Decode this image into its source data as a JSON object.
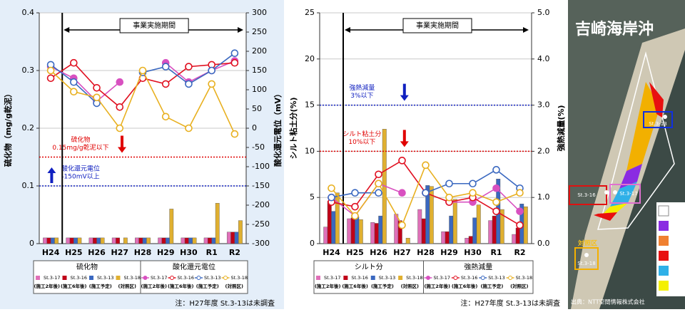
{
  "chart_data": [
    {
      "type": "combo",
      "y_title": "硫化物（mg/g乾泥）",
      "y2_title": "酸化還元電位（mV）",
      "categories": [
        "H24",
        "H25",
        "H26",
        "H27",
        "H28",
        "H29",
        "H30",
        "R1",
        "R2"
      ],
      "ylim": [
        0,
        0.4
      ],
      "yticks": [
        0,
        0.1,
        0.2,
        0.3,
        0.4
      ],
      "y2lim": [
        -300,
        300
      ],
      "y2ticks": [
        300,
        250,
        200,
        150,
        100,
        50,
        0,
        -50,
        -100,
        -150,
        -200,
        -250,
        -300
      ],
      "grid": true,
      "series": [
        {
          "name": "St.3-17",
          "color": "#e070b8",
          "kind": "bar",
          "values": [
            0.01,
            0.01,
            0.01,
            0.01,
            0.01,
            0.01,
            0.01,
            0.01,
            0.02
          ]
        },
        {
          "name": "St.3-16",
          "color": "#c00018",
          "kind": "bar",
          "values": [
            0.01,
            0.01,
            0.01,
            0.01,
            0.01,
            0.01,
            0.01,
            0.01,
            0.02
          ]
        },
        {
          "name": "St.3-13",
          "color": "#3a68c0",
          "kind": "bar",
          "values": [
            0.01,
            0.01,
            0.01,
            null,
            0.01,
            0.01,
            0.01,
            0.01,
            0.02
          ]
        },
        {
          "name": "St.3-18",
          "color": "#e0b030",
          "kind": "bar",
          "values": [
            0.01,
            0.01,
            0.01,
            0.01,
            0.01,
            0.06,
            0.01,
            0.07,
            0.04
          ]
        },
        {
          "name": "St.3-17",
          "color": "#d850c0",
          "kind": "line",
          "axis": "y2",
          "marker": "filled",
          "values": [
            160,
            130,
            70,
            120,
            null,
            170,
            120,
            150,
            175
          ]
        },
        {
          "name": "St.3-16",
          "color": "#e01020",
          "kind": "line",
          "axis": "y2",
          "marker": "open",
          "values": [
            130,
            170,
            105,
            55,
            130,
            115,
            160,
            165,
            170
          ]
        },
        {
          "name": "St.3-13",
          "color": "#3a68c0",
          "kind": "line",
          "axis": "y2",
          "marker": "open",
          "values": [
            165,
            120,
            65,
            null,
            145,
            160,
            115,
            150,
            195
          ]
        },
        {
          "name": "St.3-18",
          "color": "#e8b020",
          "kind": "line",
          "axis": "y2",
          "marker": "open",
          "values": [
            150,
            95,
            80,
            0,
            150,
            30,
            0,
            115,
            -15
          ]
        }
      ],
      "reference_lines": [
        {
          "axis": "y",
          "value": 0.15,
          "color": "#e00000",
          "arrow": "down",
          "label": [
            "硫化物",
            "0.15mg/g乾泥以下"
          ]
        },
        {
          "axis": "y2",
          "value": -150,
          "color": "#1020c0",
          "arrow": "up",
          "label": [
            "酸化還元電位",
            "-150mV以上"
          ]
        }
      ],
      "period": {
        "label": "事業実施期間",
        "start": "H25"
      },
      "legend_groups": [
        "硫化物",
        "酸化還元電位"
      ],
      "legend_notes": [
        "(施工2年後)",
        "(施工6年後)",
        "(施工予定)",
        "(対照区)"
      ],
      "note": "注：H27年度 St.3-13は未調査"
    },
    {
      "type": "combo",
      "y_title": "シルト粘土分(%)",
      "y2_title": "強熱減量(%)",
      "categories": [
        "H24",
        "H25",
        "H26",
        "H27",
        "H28",
        "H29",
        "H30",
        "R1",
        "R2"
      ],
      "ylim": [
        0,
        25
      ],
      "yticks": [
        0,
        5,
        10,
        15,
        20,
        25
      ],
      "y2lim": [
        0,
        5
      ],
      "y2ticks": [
        {
          "value": 0,
          "label": "0.0"
        },
        {
          "value": 1,
          "label": "1.0"
        },
        {
          "value": 2,
          "label": "2.0"
        },
        {
          "value": 3,
          "label": "3.0"
        },
        {
          "value": 4,
          "label": "4.0"
        },
        {
          "value": 5,
          "label": "5.0"
        }
      ],
      "grid": true,
      "series": [
        {
          "name": "St.3-17",
          "color": "#e070b8",
          "kind": "bar",
          "values": [
            1.8,
            2.7,
            2.3,
            3.2,
            3.7,
            1.3,
            0.6,
            2.5,
            1.0
          ]
        },
        {
          "name": "St.3-16",
          "color": "#c00018",
          "kind": "bar",
          "values": [
            4.6,
            2.8,
            2.2,
            2.5,
            2.7,
            1.3,
            0.8,
            3.0,
            1.7
          ]
        },
        {
          "name": "St.3-13",
          "color": "#3a68c0",
          "kind": "bar",
          "values": [
            3.5,
            2.9,
            3.0,
            null,
            6.3,
            3.0,
            2.8,
            7.0,
            4.3
          ]
        },
        {
          "name": "St.3-18",
          "color": "#e0b030",
          "kind": "bar",
          "values": [
            5.5,
            2.6,
            12.4,
            0.6,
            6.2,
            4.8,
            4.2,
            3.7,
            4.0
          ]
        },
        {
          "name": "St.3-17",
          "color": "#d850c0",
          "kind": "line",
          "axis": "y2",
          "marker": "filled",
          "values": [
            1.0,
            0.6,
            1.3,
            1.1,
            null,
            0.9,
            0.9,
            1.2,
            0.7
          ]
        },
        {
          "name": "St.3-16",
          "color": "#e01020",
          "kind": "line",
          "axis": "y2",
          "marker": "open",
          "values": [
            0.9,
            0.8,
            1.5,
            1.8,
            1.1,
            0.9,
            1.0,
            0.7,
            0.4
          ]
        },
        {
          "name": "St.3-13",
          "color": "#3a68c0",
          "kind": "line",
          "axis": "y2",
          "marker": "open",
          "values": [
            1.0,
            1.1,
            1.1,
            null,
            1.1,
            1.3,
            1.3,
            1.6,
            1.2
          ]
        },
        {
          "name": "St.3-18",
          "color": "#e8b020",
          "kind": "line",
          "axis": "y2",
          "marker": "open",
          "values": [
            1.2,
            0.6,
            1.3,
            0.4,
            1.7,
            1.0,
            1.1,
            0.9,
            1.1
          ]
        }
      ],
      "reference_lines": [
        {
          "axis": "y2",
          "value": 3,
          "color": "#1020c0",
          "arrow": "down",
          "label": [
            "強熱減量",
            "3%以下"
          ]
        },
        {
          "axis": "y",
          "value": 10,
          "color": "#e00000",
          "arrow": "down",
          "label": [
            "シルト粘土分",
            "10%以下"
          ]
        }
      ],
      "period": {
        "label": "事業実施期間",
        "start": "H25"
      },
      "legend_groups": [
        "シルト分",
        "強熱減量"
      ],
      "legend_notes": [
        "(施工2年後)",
        "(施工6年後)",
        "(施工予定)",
        "(対照区)"
      ],
      "note": "注：H27年度 St.3-13は未調査"
    }
  ],
  "map": {
    "title": "吉崎海岸沖",
    "stations": [
      "St.3-13",
      "St.3-16",
      "St.3-17",
      "St.3-18"
    ],
    "control_label": "対照区",
    "credit": "出典：NTT空間情報株式会社"
  }
}
